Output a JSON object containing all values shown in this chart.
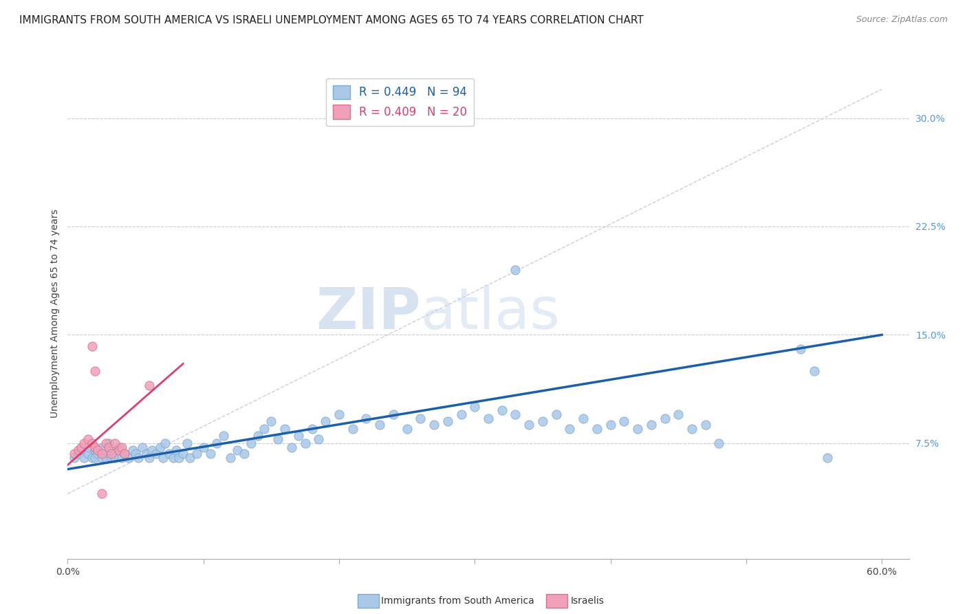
{
  "title": "IMMIGRANTS FROM SOUTH AMERICA VS ISRAELI UNEMPLOYMENT AMONG AGES 65 TO 74 YEARS CORRELATION CHART",
  "source": "Source: ZipAtlas.com",
  "ylabel": "Unemployment Among Ages 65 to 74 years",
  "xlim": [
    0.0,
    0.62
  ],
  "ylim": [
    -0.005,
    0.335
  ],
  "xticks": [
    0.0,
    0.1,
    0.2,
    0.3,
    0.4,
    0.5,
    0.6
  ],
  "xticklabels": [
    "0.0%",
    "",
    "",
    "",
    "",
    "",
    "60.0%"
  ],
  "yticks": [
    0.075,
    0.15,
    0.225,
    0.3
  ],
  "yticklabels": [
    "7.5%",
    "15.0%",
    "22.5%",
    "30.0%"
  ],
  "watermark_zip": "ZIP",
  "watermark_atlas": "atlas",
  "legend_labels": [
    "R = 0.449   N = 94",
    "R = 0.409   N = 20"
  ],
  "blue_scatter_x": [
    0.005,
    0.008,
    0.01,
    0.012,
    0.015,
    0.015,
    0.018,
    0.02,
    0.02,
    0.022,
    0.025,
    0.025,
    0.028,
    0.03,
    0.03,
    0.032,
    0.033,
    0.035,
    0.035,
    0.038,
    0.04,
    0.042,
    0.045,
    0.048,
    0.05,
    0.052,
    0.055,
    0.058,
    0.06,
    0.062,
    0.065,
    0.068,
    0.07,
    0.072,
    0.075,
    0.078,
    0.08,
    0.082,
    0.085,
    0.088,
    0.09,
    0.095,
    0.1,
    0.105,
    0.11,
    0.115,
    0.12,
    0.125,
    0.13,
    0.135,
    0.14,
    0.145,
    0.15,
    0.155,
    0.16,
    0.165,
    0.17,
    0.175,
    0.18,
    0.185,
    0.19,
    0.2,
    0.21,
    0.22,
    0.23,
    0.24,
    0.25,
    0.26,
    0.27,
    0.28,
    0.29,
    0.3,
    0.31,
    0.32,
    0.33,
    0.34,
    0.35,
    0.36,
    0.37,
    0.38,
    0.39,
    0.4,
    0.41,
    0.42,
    0.43,
    0.44,
    0.45,
    0.46,
    0.47,
    0.48,
    0.33,
    0.54,
    0.55,
    0.56
  ],
  "blue_scatter_y": [
    0.065,
    0.068,
    0.07,
    0.065,
    0.068,
    0.072,
    0.065,
    0.07,
    0.065,
    0.068,
    0.065,
    0.072,
    0.065,
    0.068,
    0.075,
    0.065,
    0.07,
    0.068,
    0.065,
    0.072,
    0.065,
    0.068,
    0.065,
    0.07,
    0.068,
    0.065,
    0.072,
    0.068,
    0.065,
    0.07,
    0.068,
    0.072,
    0.065,
    0.075,
    0.068,
    0.065,
    0.07,
    0.065,
    0.068,
    0.075,
    0.065,
    0.068,
    0.072,
    0.068,
    0.075,
    0.08,
    0.065,
    0.07,
    0.068,
    0.075,
    0.08,
    0.085,
    0.09,
    0.078,
    0.085,
    0.072,
    0.08,
    0.075,
    0.085,
    0.078,
    0.09,
    0.095,
    0.085,
    0.092,
    0.088,
    0.095,
    0.085,
    0.092,
    0.088,
    0.09,
    0.095,
    0.1,
    0.092,
    0.098,
    0.095,
    0.088,
    0.09,
    0.095,
    0.085,
    0.092,
    0.085,
    0.088,
    0.09,
    0.085,
    0.088,
    0.092,
    0.095,
    0.085,
    0.088,
    0.075,
    0.195,
    0.14,
    0.125,
    0.065
  ],
  "pink_scatter_x": [
    0.005,
    0.008,
    0.01,
    0.012,
    0.015,
    0.018,
    0.02,
    0.022,
    0.025,
    0.028,
    0.03,
    0.032,
    0.035,
    0.038,
    0.04,
    0.042,
    0.06,
    0.025,
    0.02,
    0.018
  ],
  "pink_scatter_y": [
    0.068,
    0.07,
    0.072,
    0.075,
    0.078,
    0.075,
    0.072,
    0.07,
    0.068,
    0.075,
    0.072,
    0.068,
    0.075,
    0.07,
    0.072,
    0.068,
    0.115,
    0.04,
    0.125,
    0.142
  ],
  "blue_line_x": [
    0.0,
    0.6
  ],
  "blue_line_y": [
    0.057,
    0.15
  ],
  "pink_line_x": [
    0.0,
    0.085
  ],
  "pink_line_y": [
    0.06,
    0.13
  ],
  "pink_dash_line_x": [
    0.0,
    0.6
  ],
  "pink_dash_line_y": [
    0.04,
    0.32
  ],
  "scatter_size": 90,
  "blue_color": "#aac8e8",
  "blue_edge": "#7aaad0",
  "pink_color": "#f0a0b8",
  "pink_edge": "#d87090",
  "blue_line_color": "#1a5fa8",
  "pink_line_color": "#d84070",
  "diag_line_color": "#c8c8d8",
  "title_fontsize": 11,
  "label_fontsize": 10,
  "tick_fontsize": 10,
  "source_text": "Source: ZipAtlas.com",
  "legend_blue_label": "R = 0.449   N = 94",
  "legend_pink_label": "R = 0.409   N = 20",
  "bottom_label_blue": "Immigrants from South America",
  "bottom_label_pink": "Israelis"
}
